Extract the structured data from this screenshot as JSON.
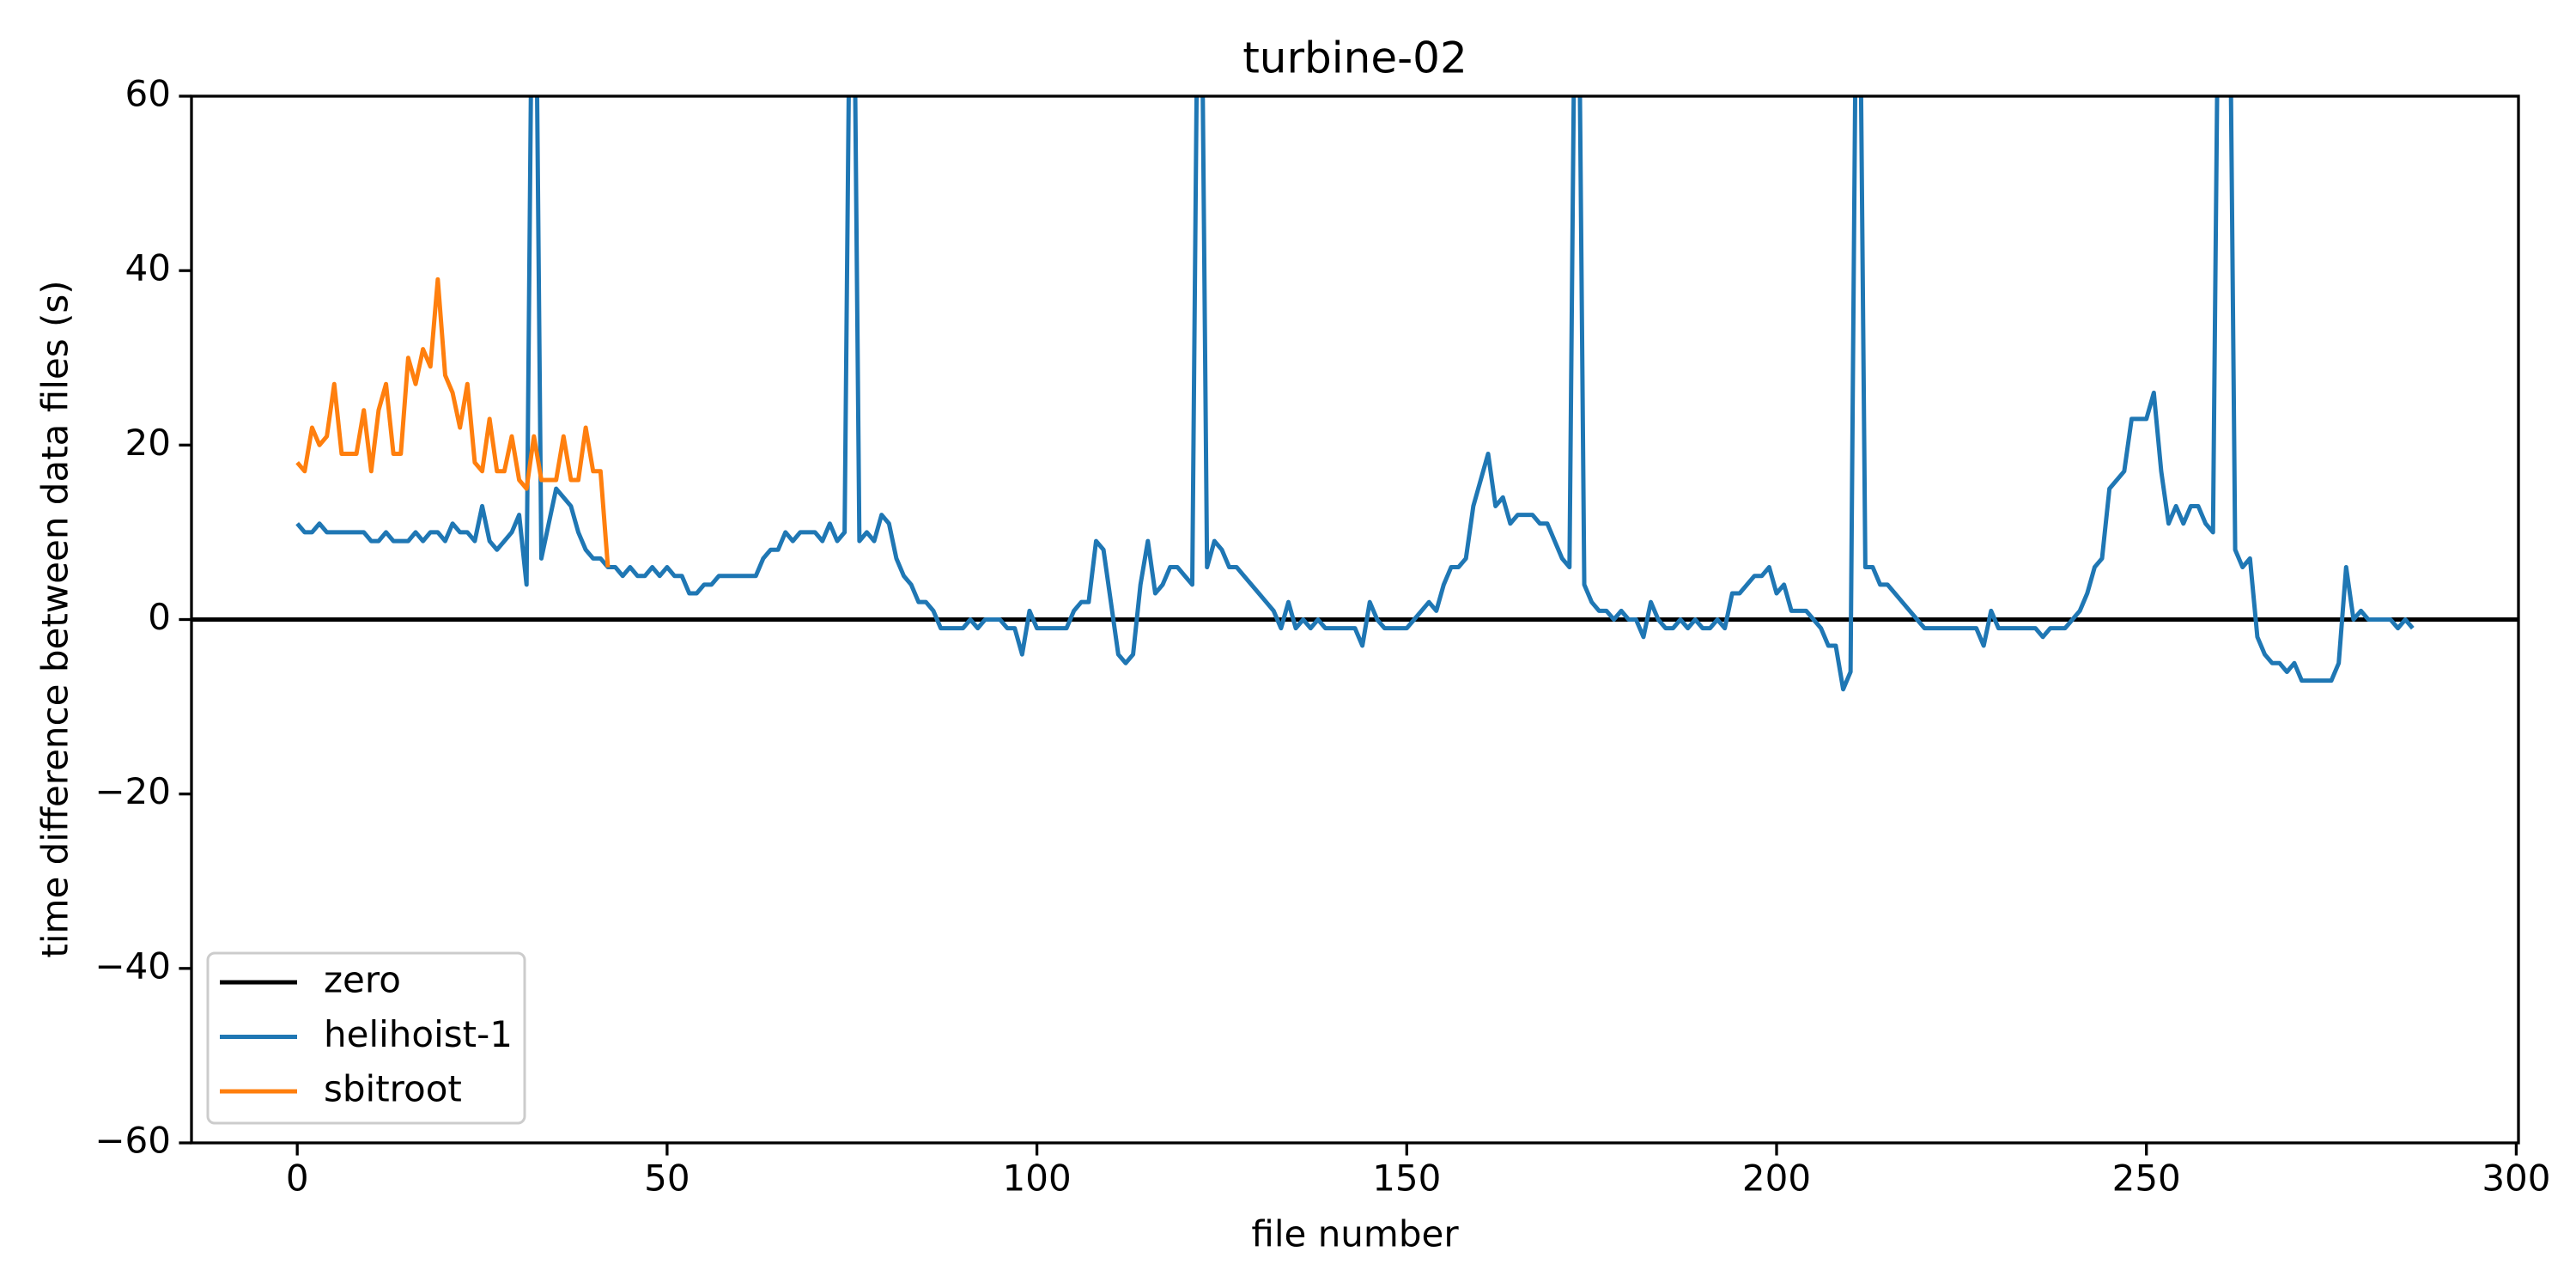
{
  "chart_data": {
    "type": "line",
    "title": "turbine-02",
    "xlabel": "file number",
    "ylabel": "time difference between data files (s)",
    "xlim": [
      -14.3,
      300.3
    ],
    "ylim": [
      -60,
      60
    ],
    "xticks": [
      0,
      50,
      100,
      150,
      200,
      250,
      300
    ],
    "yticks": [
      {
        "value": -60,
        "label": "−60"
      },
      {
        "value": -40,
        "label": "−40"
      },
      {
        "value": -20,
        "label": "−20"
      },
      0,
      20,
      40,
      60
    ],
    "legend": "lower left",
    "series": [
      {
        "name": "zero",
        "color": "#000000",
        "y": 0
      },
      {
        "name": "helihoist-1",
        "color": "#1f77b4",
        "x": [
          0,
          1,
          2,
          3,
          4,
          5,
          6,
          7,
          8,
          9,
          10,
          11,
          12,
          13,
          14,
          15,
          16,
          17,
          18,
          19,
          20,
          21,
          22,
          23,
          24,
          25,
          26,
          27,
          28,
          29,
          30,
          31,
          32,
          33,
          34,
          35,
          36,
          37,
          38,
          39,
          40,
          41,
          42,
          43,
          44,
          45,
          46,
          47,
          48,
          49,
          50,
          51,
          52,
          53,
          54,
          55,
          56,
          57,
          58,
          59,
          60,
          61,
          62,
          63,
          64,
          65,
          66,
          67,
          68,
          69,
          70,
          71,
          72,
          73,
          74,
          75,
          76,
          77,
          78,
          79,
          80,
          81,
          82,
          83,
          84,
          85,
          86,
          87,
          88,
          89,
          90,
          91,
          92,
          93,
          94,
          95,
          96,
          97,
          98,
          99,
          100,
          101,
          102,
          103,
          104,
          105,
          106,
          107,
          108,
          109,
          110,
          111,
          112,
          113,
          114,
          115,
          116,
          117,
          118,
          119,
          120,
          121,
          122,
          123,
          124,
          125,
          126,
          127,
          128,
          129,
          130,
          131,
          132,
          133,
          134,
          135,
          136,
          137,
          138,
          139,
          140,
          141,
          142,
          143,
          144,
          145,
          146,
          147,
          148,
          149,
          150,
          151,
          152,
          153,
          154,
          155,
          156,
          157,
          158,
          159,
          160,
          161,
          162,
          163,
          164,
          165,
          166,
          167,
          168,
          169,
          170,
          171,
          172,
          173,
          174,
          175,
          176,
          177,
          178,
          179,
          180,
          181,
          182,
          183,
          184,
          185,
          186,
          187,
          188,
          189,
          190,
          191,
          192,
          193,
          194,
          195,
          196,
          197,
          198,
          199,
          200,
          201,
          202,
          203,
          204,
          205,
          206,
          207,
          208,
          209,
          210,
          211,
          212,
          213,
          214,
          215,
          216,
          217,
          218,
          219,
          220,
          221,
          222,
          223,
          224,
          225,
          226,
          227,
          228,
          229,
          230,
          231,
          232,
          233,
          234,
          235,
          236,
          237,
          238,
          239,
          240,
          241,
          242,
          243,
          244,
          245,
          246,
          247,
          248,
          249,
          250,
          251,
          252,
          253,
          254,
          255,
          256,
          257,
          258,
          259,
          260,
          261,
          262,
          263,
          264,
          265,
          266,
          267,
          268,
          269,
          270,
          271,
          272,
          273,
          274,
          275,
          276,
          277,
          278,
          279,
          280,
          281,
          282,
          283,
          284,
          285,
          286
        ],
        "values": [
          11,
          10,
          10,
          11,
          10,
          10,
          10,
          10,
          10,
          10,
          9,
          9,
          10,
          9,
          9,
          9,
          10,
          9,
          10,
          10,
          9,
          11,
          10,
          10,
          9,
          13,
          9,
          8,
          9,
          10,
          12,
          4,
          100,
          7,
          11,
          15,
          14,
          13,
          10,
          8,
          7,
          7,
          6,
          6,
          5,
          6,
          5,
          5,
          6,
          5,
          6,
          5,
          5,
          3,
          3,
          4,
          4,
          5,
          5,
          5,
          5,
          5,
          5,
          7,
          8,
          8,
          10,
          9,
          10,
          10,
          10,
          9,
          11,
          9,
          10,
          100,
          9,
          10,
          9,
          12,
          11,
          7,
          5,
          4,
          2,
          2,
          1,
          -1,
          -1,
          -1,
          -1,
          0,
          -1,
          0,
          0,
          0,
          -1,
          -1,
          -4,
          1,
          -1,
          -1,
          -1,
          -1,
          -1,
          1,
          2,
          2,
          9,
          8,
          2,
          -4,
          -5,
          -4,
          4,
          9,
          3,
          4,
          6,
          6,
          5,
          4,
          100,
          6,
          9,
          8,
          6,
          6,
          5,
          4,
          3,
          2,
          1,
          -1,
          2,
          -1,
          0,
          -1,
          0,
          -1,
          -1,
          -1,
          -1,
          -1,
          -3,
          2,
          0,
          -1,
          -1,
          -1,
          -1,
          0,
          1,
          2,
          1,
          4,
          6,
          6,
          7,
          13,
          16,
          19,
          13,
          14,
          11,
          12,
          12,
          12,
          11,
          11,
          9,
          7,
          6,
          100,
          4,
          2,
          1,
          1,
          0,
          1,
          0,
          0,
          -2,
          2,
          0,
          -1,
          -1,
          0,
          -1,
          0,
          -1,
          -1,
          0,
          -1,
          3,
          3,
          4,
          5,
          5,
          6,
          3,
          4,
          1,
          1,
          1,
          0,
          -1,
          -3,
          -3,
          -8,
          -6,
          100,
          6,
          6,
          4,
          4,
          3,
          2,
          1,
          0,
          -1,
          -1,
          -1,
          -1,
          -1,
          -1,
          -1,
          -1,
          -3,
          1,
          -1,
          -1,
          -1,
          -1,
          -1,
          -1,
          -2,
          -1,
          -1,
          -1,
          0,
          1,
          3,
          6,
          7,
          15,
          16,
          17,
          23,
          23,
          23,
          26,
          17,
          11,
          13,
          11,
          13,
          13,
          11,
          10,
          100,
          100,
          8,
          6,
          7,
          -2,
          -4,
          -5,
          -5,
          -6,
          -5,
          -7,
          -7,
          -7,
          -7,
          -7,
          -5,
          6,
          0,
          1,
          0,
          0,
          0,
          0,
          -1,
          0,
          -1
        ]
      },
      {
        "name": "sbitroot",
        "color": "#ff7f0e",
        "x": [
          0,
          1,
          2,
          3,
          4,
          5,
          6,
          7,
          8,
          9,
          10,
          11,
          12,
          13,
          14,
          15,
          16,
          17,
          18,
          19,
          20,
          21,
          22,
          23,
          24,
          25,
          26,
          27,
          28,
          29,
          30,
          31,
          32,
          33,
          34,
          35,
          36,
          37,
          38,
          39,
          40,
          41,
          42
        ],
        "values": [
          18,
          17,
          22,
          20,
          21,
          27,
          19,
          19,
          19,
          24,
          17,
          24,
          27,
          19,
          19,
          30,
          27,
          31,
          29,
          39,
          28,
          26,
          22,
          27,
          18,
          17,
          23,
          17,
          17,
          21,
          16,
          15,
          21,
          16,
          16,
          16,
          21,
          16,
          16,
          22,
          17,
          17,
          6
        ]
      }
    ]
  }
}
